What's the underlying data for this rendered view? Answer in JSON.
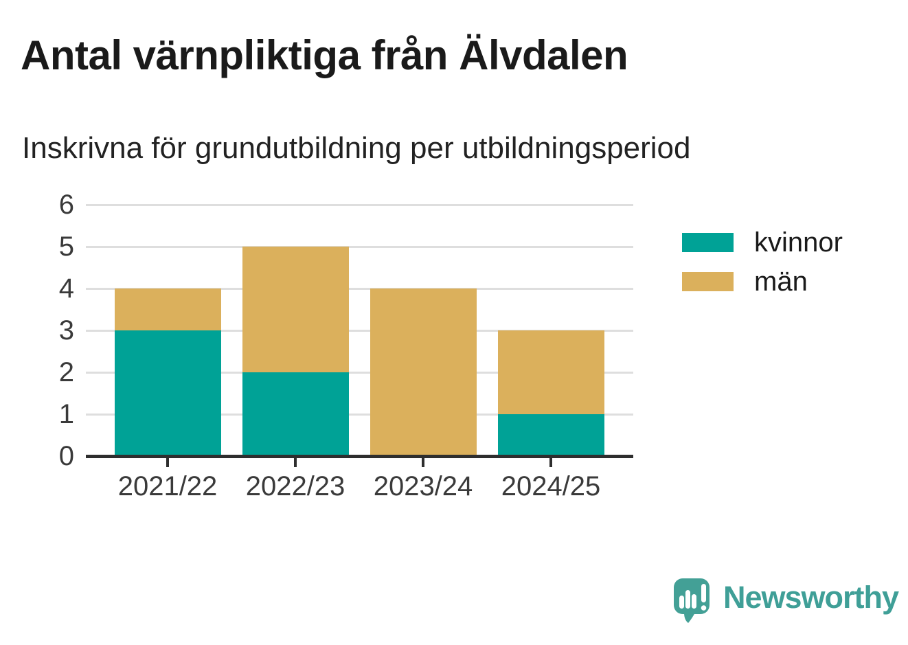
{
  "header": {
    "title": "Antal värnpliktiga från Älvdalen",
    "subtitle": "Inskrivna för grundutbildning per utbildningsperiod"
  },
  "chart_data": {
    "type": "bar",
    "stacked": true,
    "title": "Antal värnpliktiga från Älvdalen",
    "subtitle": "Inskrivna för grundutbildning per utbildningsperiod",
    "categories": [
      "2021/22",
      "2022/23",
      "2023/24",
      "2024/25"
    ],
    "series": [
      {
        "name": "kvinnor",
        "color": "#00a296",
        "values": [
          3,
          2,
          0,
          1
        ]
      },
      {
        "name": "män",
        "color": "#dbb05c",
        "values": [
          1,
          3,
          4,
          2
        ]
      }
    ],
    "xlabel": "",
    "ylabel": "",
    "ylim": [
      0,
      6
    ],
    "yticks": [
      0,
      1,
      2,
      3,
      4,
      5,
      6
    ],
    "grid": true,
    "legend_position": "right"
  },
  "footer": {
    "brand": "Newsworthy"
  },
  "colors": {
    "background": "#ffffff",
    "kvinnor": "#00a296",
    "man": "#dbb05c",
    "grid": "#dedede",
    "axis": "#2e2e2e",
    "text": "#1a1a1a",
    "brand": "#3f9f97"
  }
}
